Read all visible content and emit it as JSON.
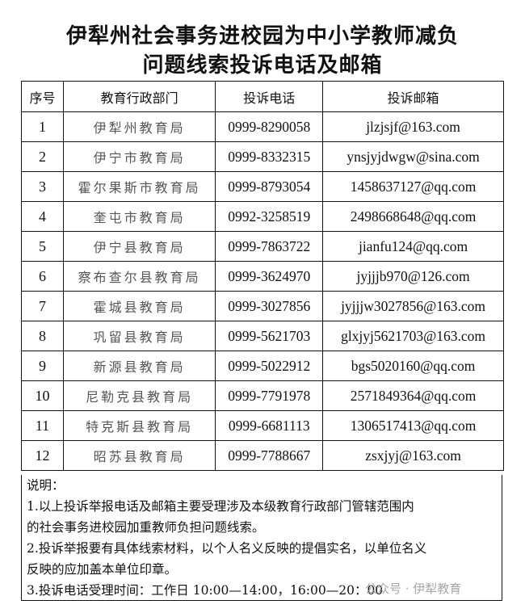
{
  "title": {
    "line1": "伊犁州社会事务进校园为中小学教师减负",
    "line2": "问题线索投诉电话及邮箱"
  },
  "table": {
    "headers": [
      "序号",
      "教育行政部门",
      "投诉电话",
      "投诉邮箱"
    ],
    "rows": [
      [
        "1",
        "伊犁州教育局",
        "0999-8290058",
        "jlzjsjf@163.com"
      ],
      [
        "2",
        "伊宁市教育局",
        "0999-8332315",
        "ynsjyjdwgw@sina.com"
      ],
      [
        "3",
        "霍尔果斯市教育局",
        "0999-8793054",
        "1458637127@qq.com"
      ],
      [
        "4",
        "奎屯市教育局",
        "0992-3258519",
        "2498668648@qq.com"
      ],
      [
        "5",
        "伊宁县教育局",
        "0999-7863722",
        "jianfu124@qq.com"
      ],
      [
        "6",
        "察布查尔县教育局",
        "0999-3624970",
        "jyjjjb970@126.com"
      ],
      [
        "7",
        "霍城县教育局",
        "0999-3027856",
        "jyjjjw3027856@163.com"
      ],
      [
        "8",
        "巩留县教育局",
        "0999-5621703",
        "glxjyj5621703@163.com"
      ],
      [
        "9",
        "新源县教育局",
        "0999-5022912",
        "bgs5020160@qq.com"
      ],
      [
        "10",
        "尼勒克县教育局",
        "0999-7791978",
        "2571849364@qq.com"
      ],
      [
        "11",
        "特克斯县教育局",
        "0999-6681113",
        "1306517413@qq.com"
      ],
      [
        "12",
        "昭苏县教育局",
        "0999-7788667",
        "zsxjyj@163.com"
      ]
    ]
  },
  "notes": {
    "heading": "说明：",
    "lines": [
      "1.以上投诉举报电话及邮箱主要受理涉及本级教育行政部门管辖范围内",
      "的社会事务进校园加重教师负担问题线索。",
      "2.投诉举报要有具体线索材料，以个人名义反映的提倡实名，以单位名义",
      "反映的应加盖本单位印章。",
      "3.投诉电话受理时间：工作日 10:00—14:00，16:00—20：00"
    ]
  },
  "watermark": "公众号 · 伊犁教育"
}
